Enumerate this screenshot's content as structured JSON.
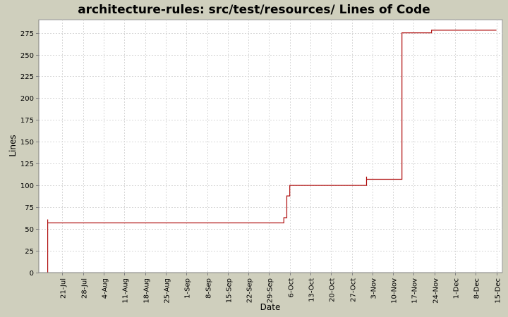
{
  "chart_data": {
    "type": "line",
    "title": "architecture-rules: src/test/resources/ Lines of Code",
    "xlabel": "Date",
    "ylabel": "Lines",
    "ylim": [
      0,
      290
    ],
    "y_ticks": [
      0,
      25,
      50,
      75,
      100,
      125,
      150,
      175,
      200,
      225,
      250,
      275
    ],
    "x_start": "2006-07-13",
    "x_end": "2006-12-17",
    "x_tick_labels": [
      {
        "label": "21-Jul",
        "date": "2006-07-21"
      },
      {
        "label": "28-Jul",
        "date": "2006-07-28"
      },
      {
        "label": "4-Aug",
        "date": "2006-08-04"
      },
      {
        "label": "11-Aug",
        "date": "2006-08-11"
      },
      {
        "label": "18-Aug",
        "date": "2006-08-18"
      },
      {
        "label": "25-Aug",
        "date": "2006-08-25"
      },
      {
        "label": "1-Sep",
        "date": "2006-09-01"
      },
      {
        "label": "8-Sep",
        "date": "2006-09-08"
      },
      {
        "label": "15-Sep",
        "date": "2006-09-15"
      },
      {
        "label": "22-Sep",
        "date": "2006-09-22"
      },
      {
        "label": "29-Sep",
        "date": "2006-09-29"
      },
      {
        "label": "6-Oct",
        "date": "2006-10-06"
      },
      {
        "label": "13-Oct",
        "date": "2006-10-13"
      },
      {
        "label": "20-Oct",
        "date": "2006-10-20"
      },
      {
        "label": "27-Oct",
        "date": "2006-10-27"
      },
      {
        "label": "3-Nov",
        "date": "2006-11-03"
      },
      {
        "label": "10-Nov",
        "date": "2006-11-10"
      },
      {
        "label": "17-Nov",
        "date": "2006-11-17"
      },
      {
        "label": "24-Nov",
        "date": "2006-11-24"
      },
      {
        "label": "1-Dec",
        "date": "2006-12-01"
      },
      {
        "label": "8-Dec",
        "date": "2006-12-08"
      },
      {
        "label": "15-Dec",
        "date": "2006-12-15"
      }
    ],
    "grid": true,
    "colors": {
      "line": "#b01010",
      "plot_bg": "#ffffff",
      "grid": "#d8d8d8",
      "page_bg": "#cfcfbd"
    },
    "series": [
      {
        "step": true,
        "points": [
          {
            "x": "2006-07-16",
            "y": 0
          },
          {
            "x": "2006-07-16",
            "y": 61
          },
          {
            "x": "2006-07-16",
            "y": 57
          },
          {
            "x": "2006-10-04",
            "y": 57
          },
          {
            "x": "2006-10-04",
            "y": 63
          },
          {
            "x": "2006-10-05",
            "y": 63
          },
          {
            "x": "2006-10-05",
            "y": 88
          },
          {
            "x": "2006-10-06",
            "y": 88
          },
          {
            "x": "2006-10-06",
            "y": 100
          },
          {
            "x": "2006-11-01",
            "y": 100
          },
          {
            "x": "2006-11-01",
            "y": 110
          },
          {
            "x": "2006-11-01",
            "y": 107
          },
          {
            "x": "2006-11-13",
            "y": 107
          },
          {
            "x": "2006-11-13",
            "y": 275
          },
          {
            "x": "2006-11-23",
            "y": 275
          },
          {
            "x": "2006-11-23",
            "y": 278
          },
          {
            "x": "2006-12-15",
            "y": 278
          }
        ]
      }
    ]
  }
}
